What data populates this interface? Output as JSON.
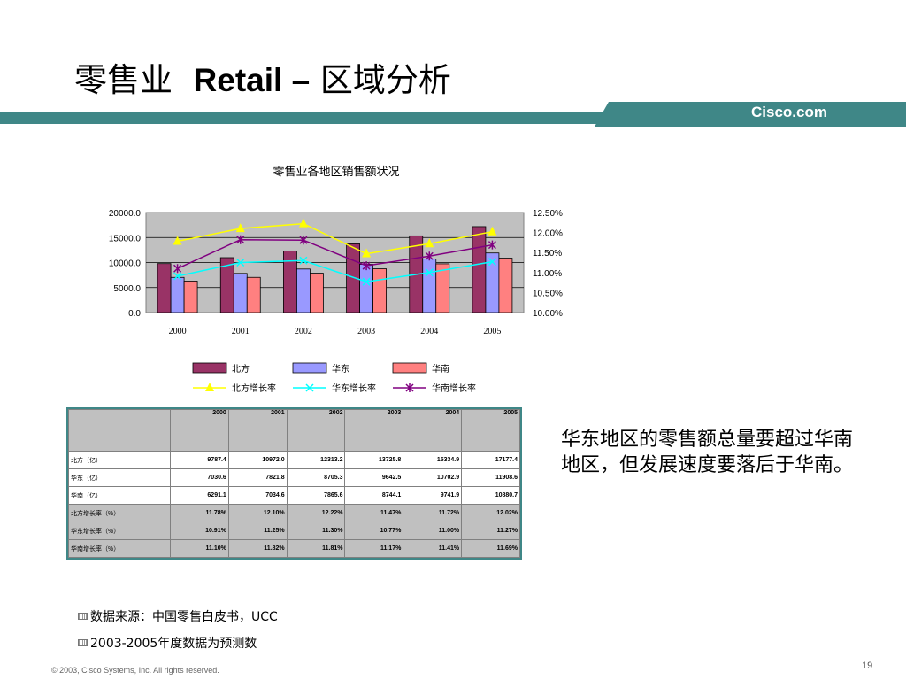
{
  "slide": {
    "title_cn1": "零售业",
    "title_en": "Retail –",
    "title_cn2": "区域分析",
    "brand": "Cisco.com",
    "band_color": "#3f8787",
    "note": "华东地区的零售额总量要超过华南地区，但发展速度要落后于华南。",
    "source_line1": "数据来源：中国零售白皮书，UCC",
    "source_line2": "2003-2005年度数据为预测数",
    "copyright": "© 2003, Cisco Systems, Inc. All rights reserved.",
    "page_number": "19"
  },
  "chart_data": {
    "type": "bar",
    "title": "零售业各地区销售额状况",
    "categories": [
      "2000",
      "2001",
      "2002",
      "2003",
      "2004",
      "2005"
    ],
    "y_left": {
      "ticks": [
        "0.0",
        "5000.0",
        "10000.0",
        "15000.0",
        "20000.0"
      ],
      "ylim": [
        0,
        20000
      ]
    },
    "y_right": {
      "ticks": [
        "10.00%",
        "10.50%",
        "11.00%",
        "11.50%",
        "12.00%",
        "12.50%"
      ],
      "ylim": [
        10.0,
        12.5
      ]
    },
    "grid": true,
    "legend_position": "bottom",
    "bar_series": [
      {
        "name": "北方",
        "values": [
          9787.4,
          10972.0,
          12313.2,
          13725.8,
          15334.9,
          17177.4
        ],
        "color": "#993366"
      },
      {
        "name": "华东",
        "values": [
          7030.6,
          7821.8,
          8705.3,
          9642.5,
          10702.9,
          11908.6
        ],
        "color": "#9999ff"
      },
      {
        "name": "华南",
        "values": [
          6291.1,
          7034.6,
          7865.6,
          8744.1,
          9741.9,
          10880.7
        ],
        "color": "#ff8080"
      }
    ],
    "line_series": [
      {
        "name": "北方增长率",
        "values": [
          11.78,
          12.1,
          12.22,
          11.47,
          11.72,
          12.02
        ],
        "color": "#ffff00",
        "marker": "triangle"
      },
      {
        "name": "华东增长率",
        "values": [
          10.91,
          11.25,
          11.3,
          10.77,
          11.0,
          11.27
        ],
        "color": "#00ffff",
        "marker": "x"
      },
      {
        "name": "华南增长率",
        "values": [
          11.1,
          11.82,
          11.81,
          11.17,
          11.41,
          11.69
        ],
        "color": "#800080",
        "marker": "star"
      }
    ]
  },
  "table": {
    "years": [
      "2000",
      "2001",
      "2002",
      "2003",
      "2004",
      "2005"
    ],
    "rows": [
      {
        "label": "北方（亿）",
        "values": [
          "9787.4",
          "10972.0",
          "12313.2",
          "13725.8",
          "15334.9",
          "17177.4"
        ]
      },
      {
        "label": "华东（亿）",
        "values": [
          "7030.6",
          "7821.8",
          "8705.3",
          "9642.5",
          "10702.9",
          "11908.6"
        ]
      },
      {
        "label": "华南（亿）",
        "values": [
          "6291.1",
          "7034.6",
          "7865.6",
          "8744.1",
          "9741.9",
          "10880.7"
        ]
      },
      {
        "label": "北方增长率（%）",
        "values": [
          "11.78%",
          "12.10%",
          "12.22%",
          "11.47%",
          "11.72%",
          "12.02%"
        ]
      },
      {
        "label": "华东增长率（%）",
        "values": [
          "10.91%",
          "11.25%",
          "11.30%",
          "10.77%",
          "11.00%",
          "11.27%"
        ]
      },
      {
        "label": "华南增长率（%）",
        "values": [
          "11.10%",
          "11.82%",
          "11.81%",
          "11.17%",
          "11.41%",
          "11.69%"
        ]
      }
    ]
  }
}
